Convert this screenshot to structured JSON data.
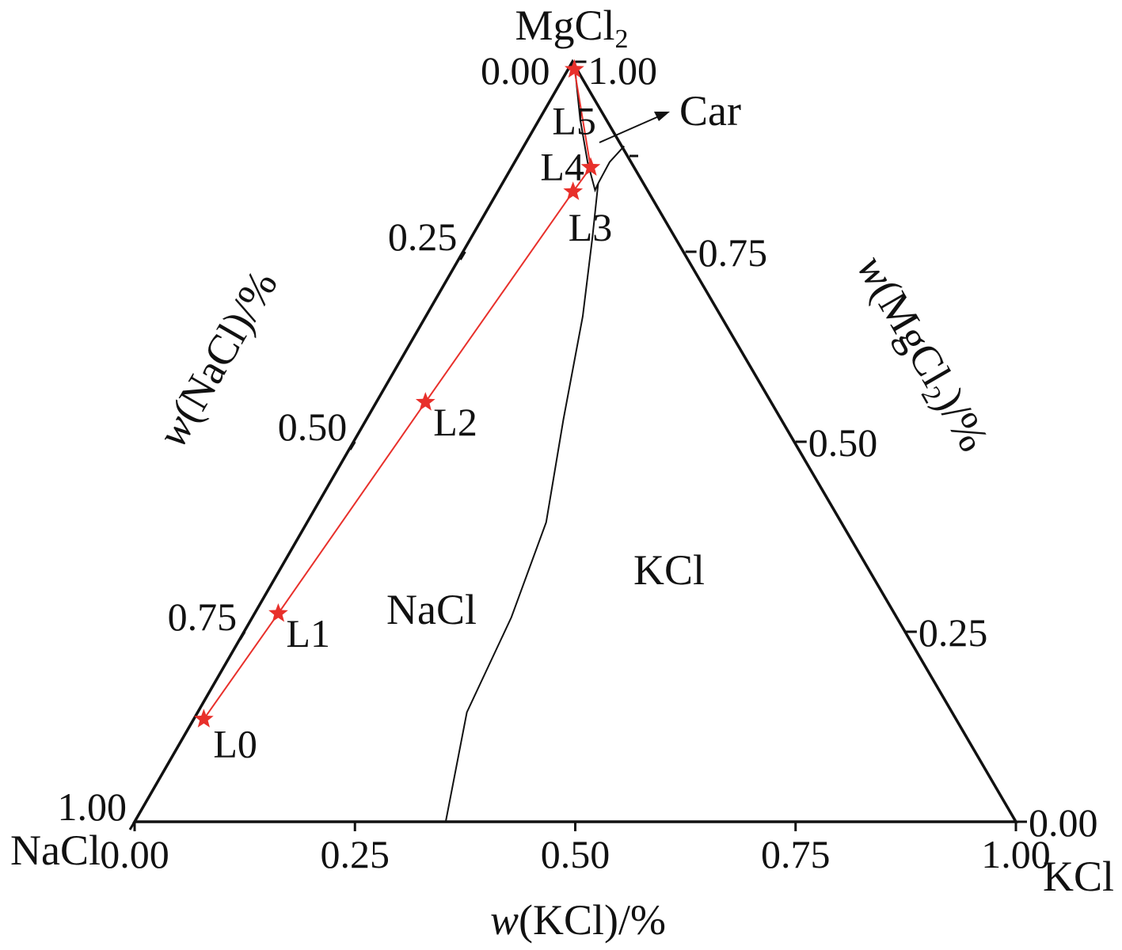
{
  "chart_data": {
    "type": "ternary",
    "vertices": {
      "top": "MgCl2",
      "left": "NaCl",
      "right": "KCl"
    },
    "axes": {
      "bottom": {
        "label_prefix": "w",
        "label_rest": "(KCl)/%",
        "ticks": [
          0,
          0.25,
          0.5,
          0.75,
          1
        ],
        "tick_labels": [
          "0.00",
          "0.25",
          "0.50",
          "0.75",
          "1.00"
        ]
      },
      "left": {
        "label_prefix": "w",
        "label_rest": "(NaCl)/%",
        "ticks": [
          0,
          0.25,
          0.5,
          0.75,
          1
        ],
        "tick_labels": [
          "0.00",
          "0.25",
          "0.50",
          "0.75",
          "1.00"
        ]
      },
      "right": {
        "label_prefix": "w",
        "label_rest": "(MgCl",
        "label_sub": "2",
        "label_end": ")/%",
        "ticks": [
          0,
          0.25,
          0.5,
          0.75,
          1
        ],
        "tick_labels": [
          "0.00",
          "0.25",
          "0.50",
          "0.75",
          "1.00"
        ]
      }
    },
    "regions": [
      {
        "label": "NaCl"
      },
      {
        "label": "KCl"
      },
      {
        "label": "Car"
      }
    ],
    "phase_boundaries": [
      {
        "points": [
          [
            0.353,
            0
          ],
          [
            0.305,
            0.144
          ],
          [
            0.293,
            0.269
          ],
          [
            0.27,
            0.394
          ],
          [
            0.222,
            0.529
          ],
          [
            0.176,
            0.665
          ],
          [
            0.135,
            0.769
          ],
          [
            0.106,
            0.84
          ]
        ]
      },
      {
        "points": [
          [
            0.106,
            0.84
          ],
          [
            0.107,
            0.831
          ],
          [
            0.08,
            0.868
          ],
          [
            0.043,
            0.925
          ],
          [
            0.003,
            0.993
          ]
        ]
      },
      {
        "points": [
          [
            0.106,
            0.84
          ],
          [
            0.105,
            0.868
          ],
          [
            0.111,
            0.889
          ]
        ]
      }
    ],
    "path": {
      "color": "#e8302b",
      "points": [
        {
          "label": "L0",
          "KCl": 0.011,
          "MgCl2": 0.135
        },
        {
          "label": "L1",
          "KCl": 0.026,
          "MgCl2": 0.274
        },
        {
          "label": "L2",
          "KCl": 0.054,
          "MgCl2": 0.552
        },
        {
          "label": "L3",
          "KCl": 0.083,
          "MgCl2": 0.829
        },
        {
          "label": "L4",
          "KCl": 0.087,
          "MgCl2": 0.861
        },
        {
          "label": "L5",
          "KCl": 0.004,
          "MgCl2": 0.99
        }
      ]
    }
  }
}
